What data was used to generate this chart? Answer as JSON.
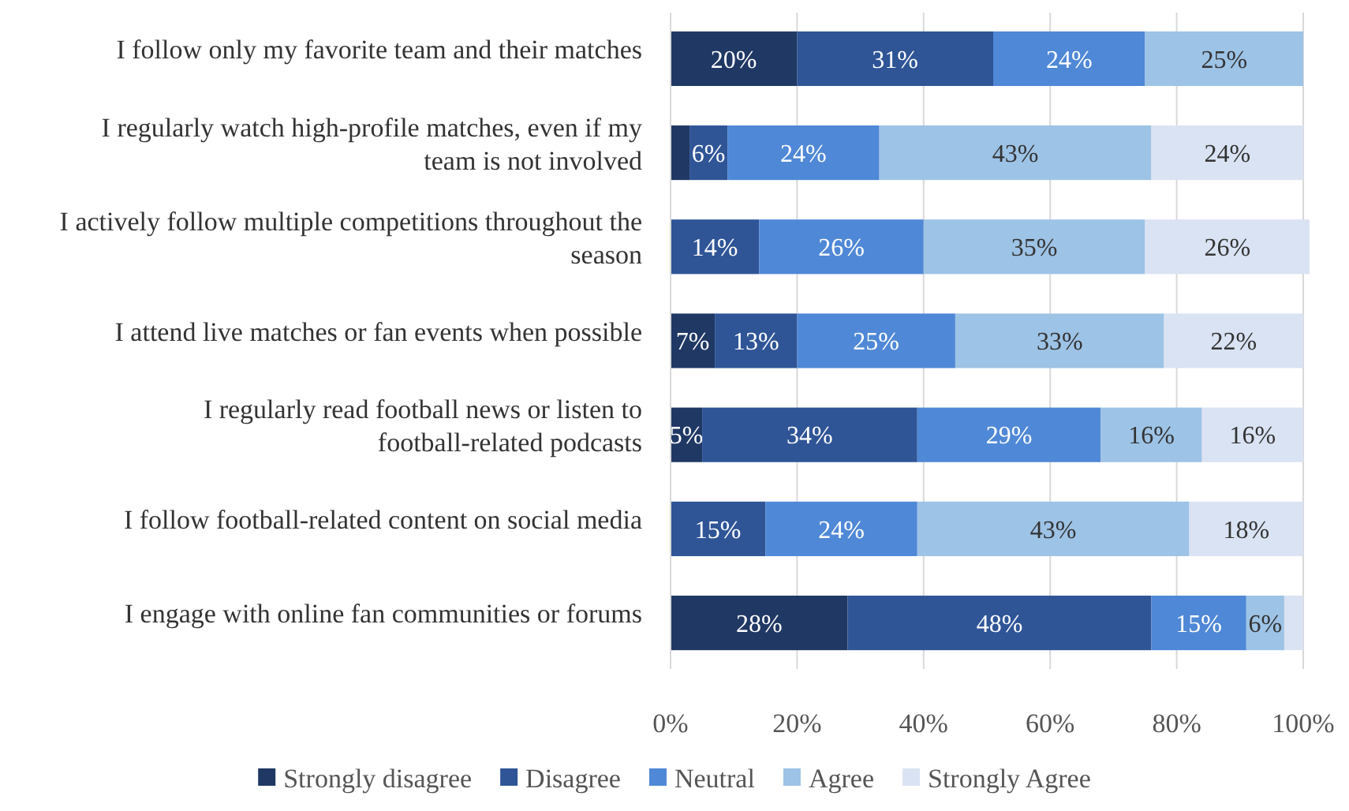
{
  "chart_data": {
    "type": "bar",
    "orientation": "horizontal",
    "stacked": true,
    "categories": [
      "I follow only my favorite team and their matches",
      "I regularly watch high-profile matches, even if my team is not involved",
      "I actively follow multiple competitions throughout the season",
      "I attend live matches or fan events when possible",
      "I regularly read football news or listen to football-related podcasts",
      "I follow football-related content on social media",
      "I engage with online fan communities or forums"
    ],
    "series": [
      {
        "name": "Strongly disagree",
        "color": "#203864",
        "values": [
          20,
          3,
          null,
          7,
          5,
          null,
          28
        ],
        "value_labels": [
          "20%",
          null,
          null,
          "7%",
          "5%",
          null,
          "28%"
        ]
      },
      {
        "name": "Disagree",
        "color": "#2f5597",
        "values": [
          31,
          6,
          14,
          13,
          34,
          15,
          48
        ],
        "value_labels": [
          "31%",
          "6%",
          "14%",
          "13%",
          "34%",
          "15%",
          "48%"
        ]
      },
      {
        "name": "Neutral",
        "color": "#4f88d6",
        "values": [
          24,
          24,
          26,
          25,
          29,
          24,
          15
        ],
        "value_labels": [
          "24%",
          "24%",
          "26%",
          "25%",
          "29%",
          "24%",
          "15%"
        ]
      },
      {
        "name": "Agree",
        "color": "#9dc3e6",
        "values": [
          25,
          43,
          35,
          33,
          16,
          43,
          6
        ],
        "value_labels": [
          "25%",
          "43%",
          "35%",
          "33%",
          "16%",
          "43%",
          "6%"
        ]
      },
      {
        "name": "Strongly Agree",
        "color": "#dae3f3",
        "values": [
          null,
          24,
          26,
          22,
          16,
          18,
          3
        ],
        "value_labels": [
          null,
          "24%",
          "26%",
          "22%",
          "16%",
          "18%",
          null
        ]
      }
    ],
    "xlim": [
      0,
      101
    ],
    "xticks": [
      {
        "value": 0,
        "label": "0%"
      },
      {
        "value": 20,
        "label": "20%"
      },
      {
        "value": 40,
        "label": "40%"
      },
      {
        "value": 60,
        "label": "60%"
      },
      {
        "value": 80,
        "label": "80%"
      },
      {
        "value": 100,
        "label": "100%"
      }
    ],
    "grid": "x",
    "legend": "bottom"
  }
}
